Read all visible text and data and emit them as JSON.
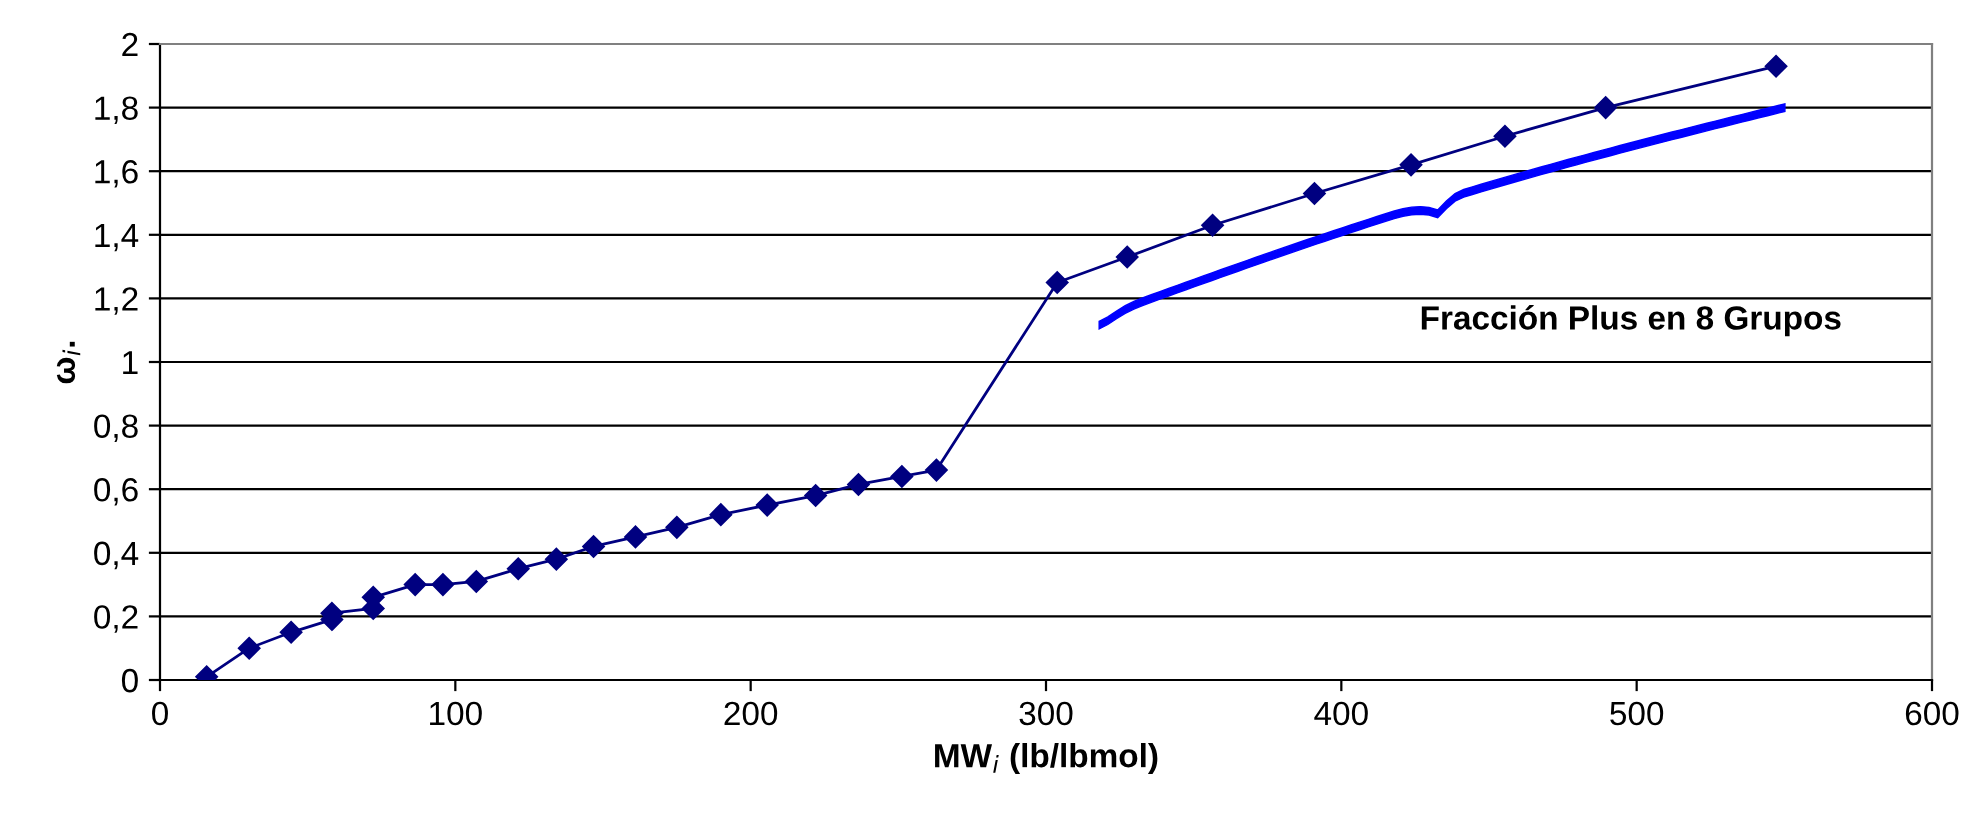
{
  "chart_data": {
    "type": "line",
    "xlabel": "MW$_{i}$ (lb/lbmol)",
    "ylabel": "ω$_{i}$.",
    "annotations": [
      "Fracción Plus en 8 Grupos"
    ],
    "series": [
      {
        "color": "#000080",
        "x": [
          15.8,
          30.2,
          44.4,
          58.2,
          58.2,
          72.2,
          72.2,
          86.4,
          95.8,
          107.1,
          121.3,
          134.2,
          146.8,
          161,
          175,
          189.9,
          205.6,
          222,
          236.5,
          251.2,
          262.9,
          303.8,
          327.5,
          356.4,
          390.9,
          423.6,
          455.4,
          489.5,
          547.2
        ],
        "values": [
          0.01,
          0.1,
          0.15,
          0.19,
          0.21,
          0.225,
          0.26,
          0.3,
          0.3,
          0.31,
          0.35,
          0.38,
          0.42,
          0.45,
          0.48,
          0.52,
          0.55,
          0.58,
          0.615,
          0.64,
          0.66,
          1.25,
          1.33,
          1.43,
          1.53,
          1.62,
          1.71,
          1.8,
          1.93
        ]
      }
    ],
    "xlim": [
      0,
      600
    ],
    "xticks": [
      0,
      100,
      200,
      300,
      400,
      500,
      600
    ],
    "ylim": [
      0,
      2
    ],
    "yticks": [
      0,
      {
        "value": 0.2,
        "label": "0,2"
      },
      {
        "value": 0.4,
        "label": "0,4"
      },
      {
        "value": 0.6,
        "label": "0,6"
      },
      {
        "value": 0.8,
        "label": "0,8"
      },
      1,
      {
        "value": 1.2,
        "label": "1,2"
      },
      {
        "value": 1.4,
        "label": "1,4"
      },
      {
        "value": 1.6,
        "label": "1,6"
      },
      {
        "value": 1.8,
        "label": "1,8"
      },
      2
    ],
    "grid": "y",
    "legend": false,
    "marker": "diamond",
    "line_style": "solid"
  }
}
